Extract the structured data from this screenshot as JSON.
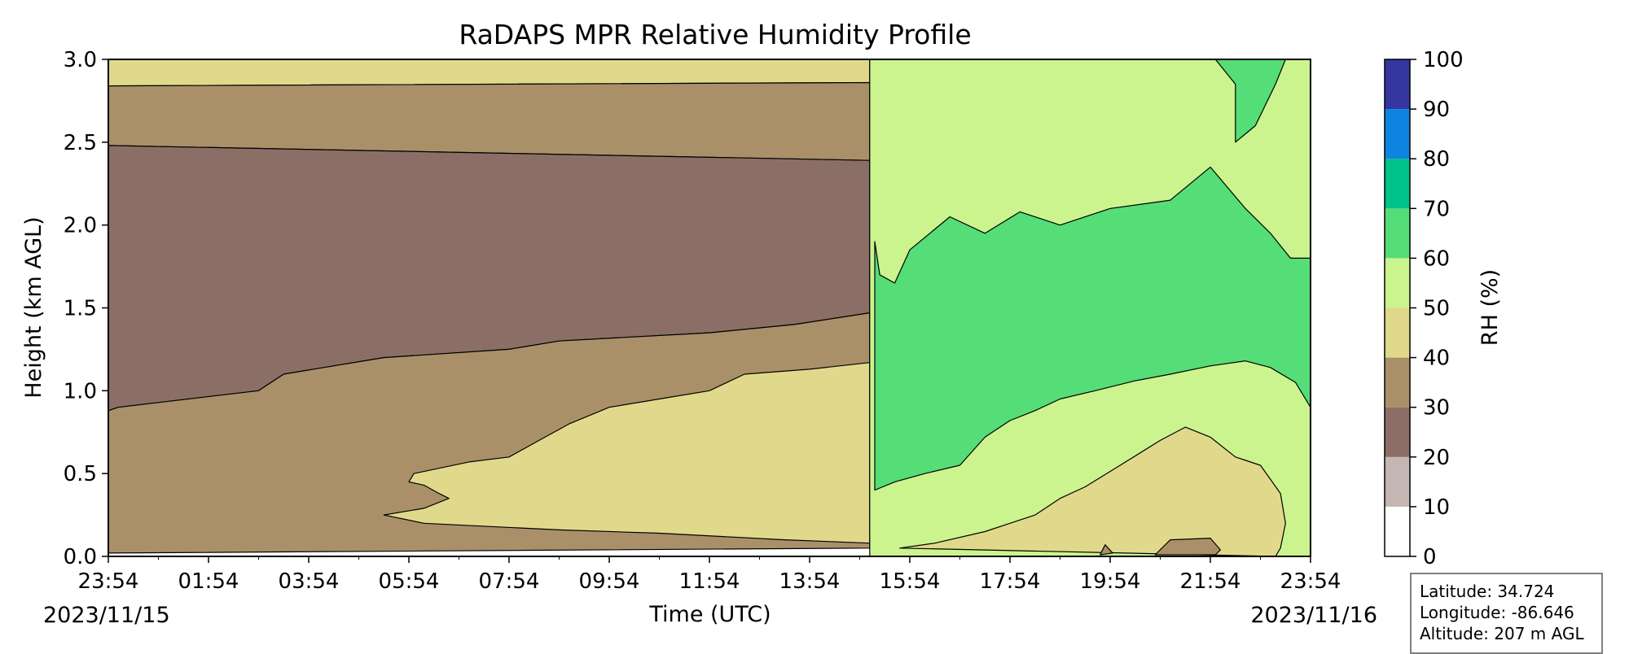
{
  "chart_data": {
    "type": "heatmap",
    "title": "RaDAPS MPR Relative Humidity Profile",
    "xlabel": "Time (UTC)",
    "ylabel": "Height (km AGL)",
    "x_ticks": [
      "23:54",
      "01:54",
      "03:54",
      "05:54",
      "07:54",
      "09:54",
      "11:54",
      "13:54",
      "15:54",
      "17:54",
      "19:54",
      "21:54",
      "23:54"
    ],
    "x_tick_hours": [
      0,
      2,
      4,
      6,
      8,
      10,
      12,
      14,
      16,
      18,
      20,
      22,
      24
    ],
    "x_range_hours": [
      0,
      24
    ],
    "start_date": "2023/11/15",
    "end_date": "2023/11/16",
    "y_ticks": [
      "0.0",
      "0.5",
      "1.0",
      "1.5",
      "2.0",
      "2.5",
      "3.0"
    ],
    "ylim": [
      0,
      3.0
    ],
    "colorbar": {
      "label": "RH (%)",
      "ticks": [
        "0",
        "10",
        "20",
        "30",
        "40",
        "50",
        "60",
        "70",
        "80",
        "90",
        "100"
      ],
      "levels": [
        0,
        10,
        20,
        30,
        40,
        50,
        60,
        70,
        80,
        90,
        100
      ],
      "colors": [
        "#ffffff",
        "#c4b6b2",
        "#8b6f66",
        "#aa9069",
        "#e0d98b",
        "#cbf48f",
        "#55dd77",
        "#00c08b",
        "#0d84e0",
        "#3537a0"
      ]
    },
    "regions": [
      {
        "rh_bin": "40-50",
        "color": "#e0d98b",
        "points": [
          [
            0,
            2.84
          ],
          [
            15.2,
            2.86
          ],
          [
            15.2,
            3.0
          ],
          [
            0,
            3.0
          ]
        ]
      },
      {
        "rh_bin": "30-40",
        "color": "#aa9069",
        "points": [
          [
            0,
            2.48
          ],
          [
            15.2,
            2.39
          ],
          [
            15.2,
            2.86
          ],
          [
            0,
            2.84
          ]
        ]
      },
      {
        "rh_bin": "20-30",
        "color": "#8b6f66",
        "points": [
          [
            0,
            0.88
          ],
          [
            0.2,
            0.9
          ],
          [
            3.0,
            1.0
          ],
          [
            3.5,
            1.1
          ],
          [
            5.5,
            1.2
          ],
          [
            8.0,
            1.25
          ],
          [
            9.0,
            1.3
          ],
          [
            12.0,
            1.35
          ],
          [
            13.7,
            1.4
          ],
          [
            15.2,
            1.47
          ],
          [
            15.2,
            2.39
          ],
          [
            0,
            2.48
          ]
        ]
      },
      {
        "rh_bin": "30-40",
        "color": "#aa9069",
        "points": [
          [
            0,
            0.02
          ],
          [
            15.2,
            0.05
          ],
          [
            15.2,
            1.47
          ],
          [
            13.7,
            1.4
          ],
          [
            12.0,
            1.35
          ],
          [
            9.0,
            1.3
          ],
          [
            8.0,
            1.25
          ],
          [
            5.5,
            1.2
          ],
          [
            3.5,
            1.1
          ],
          [
            3.0,
            1.0
          ],
          [
            0.2,
            0.9
          ],
          [
            0,
            0.88
          ]
        ]
      },
      {
        "rh_bin": "40-50",
        "color": "#e0d98b",
        "points": [
          [
            5.5,
            0.25
          ],
          [
            6.3,
            0.29
          ],
          [
            6.8,
            0.35
          ],
          [
            6.6,
            0.38
          ],
          [
            6.3,
            0.43
          ],
          [
            6.0,
            0.45
          ],
          [
            6.1,
            0.5
          ],
          [
            7.2,
            0.57
          ],
          [
            8.0,
            0.6
          ],
          [
            8.6,
            0.7
          ],
          [
            9.2,
            0.8
          ],
          [
            10.0,
            0.9
          ],
          [
            11.0,
            0.95
          ],
          [
            12.0,
            1.0
          ],
          [
            12.7,
            1.1
          ],
          [
            14.0,
            1.13
          ],
          [
            15.2,
            1.17
          ],
          [
            15.2,
            0.08
          ],
          [
            13.5,
            0.1
          ],
          [
            11.0,
            0.14
          ],
          [
            9.0,
            0.16
          ],
          [
            6.3,
            0.2
          ]
        ]
      },
      {
        "rh_bin": "50-60",
        "color": "#cbf48f",
        "points": [
          [
            15.2,
            0
          ],
          [
            24,
            0
          ],
          [
            24,
            3.0
          ],
          [
            15.2,
            3.0
          ]
        ]
      },
      {
        "rh_bin": "60-70",
        "color": "#55dd77",
        "points": [
          [
            15.3,
            0.4
          ],
          [
            15.7,
            0.45
          ],
          [
            16.3,
            0.5
          ],
          [
            17.0,
            0.55
          ],
          [
            17.5,
            0.72
          ],
          [
            18.0,
            0.82
          ],
          [
            18.5,
            0.88
          ],
          [
            19.0,
            0.95
          ],
          [
            19.7,
            1.0
          ],
          [
            20.5,
            1.06
          ],
          [
            21.2,
            1.1
          ],
          [
            22.0,
            1.15
          ],
          [
            22.7,
            1.18
          ],
          [
            23.2,
            1.14
          ],
          [
            23.7,
            1.05
          ],
          [
            23.9,
            0.95
          ],
          [
            24,
            0.9
          ],
          [
            24,
            1.8
          ],
          [
            23.6,
            1.8
          ],
          [
            23.2,
            1.95
          ],
          [
            22.7,
            2.1
          ],
          [
            22.0,
            2.35
          ],
          [
            21.2,
            2.15
          ],
          [
            20.0,
            2.1
          ],
          [
            19.0,
            2.0
          ],
          [
            18.2,
            2.08
          ],
          [
            17.5,
            1.95
          ],
          [
            16.8,
            2.05
          ],
          [
            16.0,
            1.85
          ],
          [
            15.7,
            1.65
          ],
          [
            15.4,
            1.7
          ],
          [
            15.3,
            1.9
          ]
        ]
      },
      {
        "rh_bin": "60-70",
        "color": "#55dd77",
        "points": [
          [
            22.1,
            3.0
          ],
          [
            22.5,
            2.85
          ],
          [
            22.5,
            2.5
          ],
          [
            22.9,
            2.6
          ],
          [
            23.3,
            2.85
          ],
          [
            23.5,
            3.0
          ]
        ]
      },
      {
        "rh_bin": "40-50",
        "color": "#e0d98b",
        "points": [
          [
            15.8,
            0.05
          ],
          [
            16.5,
            0.08
          ],
          [
            17.5,
            0.15
          ],
          [
            18.0,
            0.2
          ],
          [
            18.5,
            0.25
          ],
          [
            19.0,
            0.35
          ],
          [
            19.5,
            0.42
          ],
          [
            20.2,
            0.55
          ],
          [
            21.0,
            0.7
          ],
          [
            21.5,
            0.78
          ],
          [
            22.0,
            0.72
          ],
          [
            22.5,
            0.6
          ],
          [
            23.0,
            0.55
          ],
          [
            23.4,
            0.38
          ],
          [
            23.5,
            0.2
          ],
          [
            23.4,
            0.05
          ],
          [
            23.3,
            0
          ]
        ]
      },
      {
        "rh_bin": "30-40",
        "color": "#aa9069",
        "points": [
          [
            20.9,
            0.01
          ],
          [
            21.2,
            0.1
          ],
          [
            22.0,
            0.11
          ],
          [
            22.2,
            0.04
          ],
          [
            22.1,
            0.01
          ]
        ]
      },
      {
        "rh_bin": "30-40",
        "color": "#aa9069",
        "points": [
          [
            19.8,
            0.01
          ],
          [
            19.9,
            0.07
          ],
          [
            20.05,
            0.02
          ]
        ]
      }
    ]
  },
  "station": {
    "latitude": "Latitude: 34.724",
    "longitude": "Longitude: -86.646",
    "altitude": "Altitude: 207 m AGL"
  }
}
